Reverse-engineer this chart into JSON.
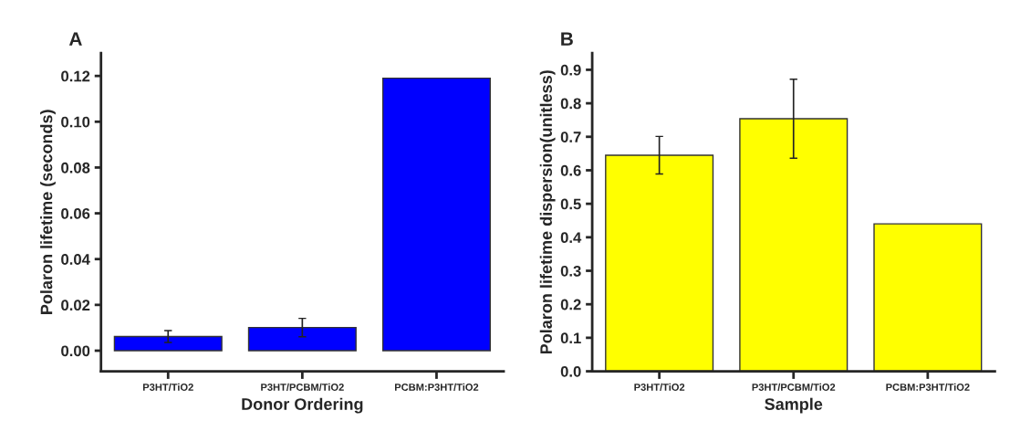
{
  "chart_data": [
    {
      "type": "bar",
      "title": "A",
      "xlabel": "Donor Ordering",
      "ylabel": "Polaron lifetime (seconds)",
      "categories": [
        "P3HT/TiO2",
        "P3HT/PCBM/TiO2",
        "PCBM:P3HT/TiO2"
      ],
      "values": [
        0.0062,
        0.0101,
        0.119
      ],
      "errors": [
        0.0026,
        0.004,
        null
      ],
      "color": "#0000ff",
      "ylim": [
        -0.009,
        0.13
      ],
      "yticks": [
        {
          "value": 0.0,
          "label": "0.00"
        },
        {
          "value": 0.02,
          "label": "0.02"
        },
        {
          "value": 0.04,
          "label": "0.04"
        },
        {
          "value": 0.06,
          "label": "0.06"
        },
        {
          "value": 0.08,
          "label": "0.08"
        },
        {
          "value": 0.1,
          "label": "0.10"
        },
        {
          "value": 0.12,
          "label": "0.12"
        }
      ],
      "grid": false
    },
    {
      "type": "bar",
      "title": "B",
      "xlabel": "Sample",
      "ylabel": "Polaron lifetime dispersion(unitless)",
      "categories": [
        "P3HT/TiO2",
        "P3HT/PCBM/TiO2",
        "PCBM:P3HT/TiO2"
      ],
      "values": [
        0.645,
        0.754,
        0.44
      ],
      "errors": [
        0.056,
        0.118,
        null
      ],
      "color": "#ffff00",
      "ylim": [
        0,
        0.95
      ],
      "yticks": [
        {
          "value": 0,
          "label": "0.0"
        },
        0.1,
        0.2,
        0.3,
        0.4,
        0.5,
        0.6,
        0.7,
        0.8,
        0.9
      ],
      "grid": false
    }
  ]
}
